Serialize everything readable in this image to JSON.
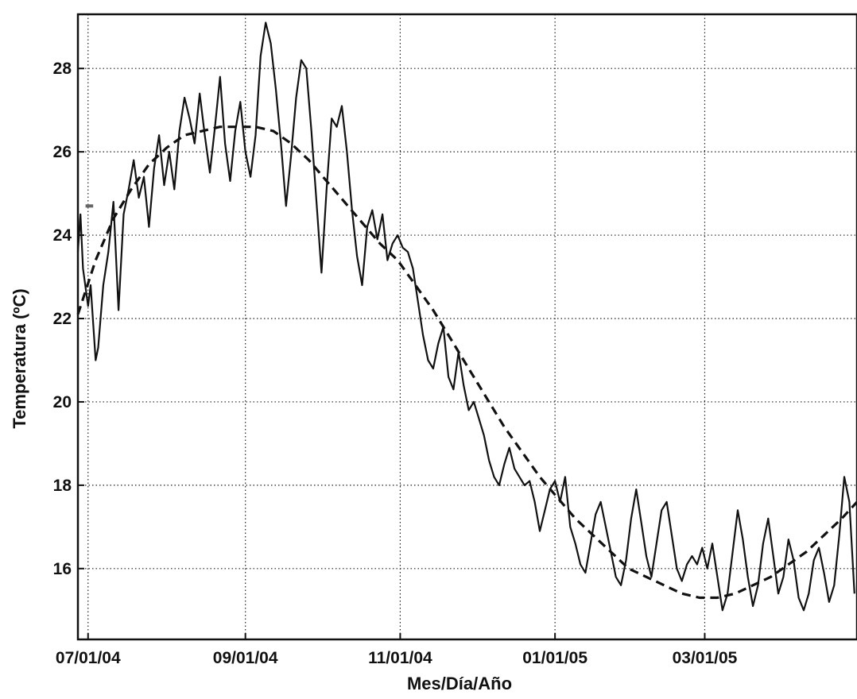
{
  "chart_data": {
    "type": "line",
    "title": "",
    "xlabel": "Mes/Día/Año",
    "ylabel": "Temperatura (ºC)",
    "x_ticks": [
      {
        "date": "2004-07-01",
        "label": "07/01/04"
      },
      {
        "date": "2004-09-01",
        "label": "09/01/04"
      },
      {
        "date": "2004-11-01",
        "label": "11/01/04"
      },
      {
        "date": "2005-01-01",
        "label": "01/01/05"
      },
      {
        "date": "2005-03-01",
        "label": "03/01/05"
      }
    ],
    "xlim": [
      "2004-06-27",
      "2005-04-30"
    ],
    "y_ticks": [
      16,
      18,
      20,
      22,
      24,
      26,
      28
    ],
    "ylim": [
      14.3,
      29.3
    ],
    "grid": true,
    "line_color": "#111111",
    "series": [
      {
        "style": "solid",
        "points": [
          [
            "2004-06-27",
            23.6
          ],
          [
            "2004-06-28",
            24.5
          ],
          [
            "2004-06-29",
            23.2
          ],
          [
            "2004-07-01",
            22.3
          ],
          [
            "2004-07-02",
            22.8
          ],
          [
            "2004-07-04",
            21.0
          ],
          [
            "2004-07-05",
            21.3
          ],
          [
            "2004-07-07",
            22.8
          ],
          [
            "2004-07-09",
            23.6
          ],
          [
            "2004-07-11",
            24.8
          ],
          [
            "2004-07-13",
            22.2
          ],
          [
            "2004-07-15",
            24.5
          ],
          [
            "2004-07-17",
            25.1
          ],
          [
            "2004-07-19",
            25.8
          ],
          [
            "2004-07-21",
            24.9
          ],
          [
            "2004-07-23",
            25.4
          ],
          [
            "2004-07-25",
            24.2
          ],
          [
            "2004-07-27",
            25.6
          ],
          [
            "2004-07-29",
            26.4
          ],
          [
            "2004-07-31",
            25.2
          ],
          [
            "2004-08-02",
            26.0
          ],
          [
            "2004-08-04",
            25.1
          ],
          [
            "2004-08-06",
            26.5
          ],
          [
            "2004-08-08",
            27.3
          ],
          [
            "2004-08-10",
            26.8
          ],
          [
            "2004-08-12",
            26.2
          ],
          [
            "2004-08-14",
            27.4
          ],
          [
            "2004-08-16",
            26.4
          ],
          [
            "2004-08-18",
            25.5
          ],
          [
            "2004-08-20",
            26.6
          ],
          [
            "2004-08-22",
            27.8
          ],
          [
            "2004-08-24",
            26.2
          ],
          [
            "2004-08-26",
            25.3
          ],
          [
            "2004-08-28",
            26.5
          ],
          [
            "2004-08-30",
            27.2
          ],
          [
            "2004-09-01",
            26.0
          ],
          [
            "2004-09-03",
            25.4
          ],
          [
            "2004-09-05",
            26.4
          ],
          [
            "2004-09-07",
            28.3
          ],
          [
            "2004-09-09",
            29.1
          ],
          [
            "2004-09-11",
            28.6
          ],
          [
            "2004-09-13",
            27.5
          ],
          [
            "2004-09-15",
            26.2
          ],
          [
            "2004-09-17",
            24.7
          ],
          [
            "2004-09-19",
            25.9
          ],
          [
            "2004-09-21",
            27.3
          ],
          [
            "2004-09-23",
            28.2
          ],
          [
            "2004-09-25",
            28.0
          ],
          [
            "2004-09-27",
            26.5
          ],
          [
            "2004-09-29",
            24.8
          ],
          [
            "2004-10-01",
            23.1
          ],
          [
            "2004-10-03",
            25.1
          ],
          [
            "2004-10-05",
            26.8
          ],
          [
            "2004-10-07",
            26.6
          ],
          [
            "2004-10-09",
            27.1
          ],
          [
            "2004-10-11",
            26.0
          ],
          [
            "2004-10-13",
            24.6
          ],
          [
            "2004-10-15",
            23.5
          ],
          [
            "2004-10-17",
            22.8
          ],
          [
            "2004-10-19",
            24.2
          ],
          [
            "2004-10-21",
            24.6
          ],
          [
            "2004-10-23",
            23.9
          ],
          [
            "2004-10-25",
            24.5
          ],
          [
            "2004-10-27",
            23.4
          ],
          [
            "2004-10-29",
            23.8
          ],
          [
            "2004-10-31",
            24.0
          ],
          [
            "2004-11-02",
            23.7
          ],
          [
            "2004-11-04",
            23.6
          ],
          [
            "2004-11-06",
            23.2
          ],
          [
            "2004-11-08",
            22.4
          ],
          [
            "2004-11-10",
            21.6
          ],
          [
            "2004-11-12",
            21.0
          ],
          [
            "2004-11-14",
            20.8
          ],
          [
            "2004-11-16",
            21.4
          ],
          [
            "2004-11-18",
            21.8
          ],
          [
            "2004-11-20",
            20.6
          ],
          [
            "2004-11-22",
            20.3
          ],
          [
            "2004-11-24",
            21.2
          ],
          [
            "2004-11-26",
            20.4
          ],
          [
            "2004-11-28",
            19.8
          ],
          [
            "2004-11-30",
            20.0
          ],
          [
            "2004-12-02",
            19.6
          ],
          [
            "2004-12-04",
            19.2
          ],
          [
            "2004-12-06",
            18.6
          ],
          [
            "2004-12-08",
            18.2
          ],
          [
            "2004-12-10",
            18.0
          ],
          [
            "2004-12-12",
            18.5
          ],
          [
            "2004-12-14",
            18.9
          ],
          [
            "2004-12-16",
            18.4
          ],
          [
            "2004-12-18",
            18.2
          ],
          [
            "2004-12-20",
            18.0
          ],
          [
            "2004-12-22",
            18.1
          ],
          [
            "2004-12-24",
            17.6
          ],
          [
            "2004-12-26",
            16.9
          ],
          [
            "2004-12-28",
            17.4
          ],
          [
            "2004-12-30",
            17.9
          ],
          [
            "2005-01-01",
            18.1
          ],
          [
            "2005-01-03",
            17.6
          ],
          [
            "2005-01-05",
            18.2
          ],
          [
            "2005-01-07",
            17.0
          ],
          [
            "2005-01-09",
            16.6
          ],
          [
            "2005-01-11",
            16.1
          ],
          [
            "2005-01-13",
            15.9
          ],
          [
            "2005-01-15",
            16.6
          ],
          [
            "2005-01-17",
            17.3
          ],
          [
            "2005-01-19",
            17.6
          ],
          [
            "2005-01-21",
            17.0
          ],
          [
            "2005-01-23",
            16.4
          ],
          [
            "2005-01-25",
            15.8
          ],
          [
            "2005-01-27",
            15.6
          ],
          [
            "2005-01-29",
            16.2
          ],
          [
            "2005-01-31",
            17.2
          ],
          [
            "2005-02-02",
            17.9
          ],
          [
            "2005-02-04",
            17.1
          ],
          [
            "2005-02-06",
            16.3
          ],
          [
            "2005-02-08",
            15.8
          ],
          [
            "2005-02-10",
            16.6
          ],
          [
            "2005-02-12",
            17.4
          ],
          [
            "2005-02-14",
            17.6
          ],
          [
            "2005-02-16",
            16.8
          ],
          [
            "2005-02-18",
            16.0
          ],
          [
            "2005-02-20",
            15.7
          ],
          [
            "2005-02-22",
            16.1
          ],
          [
            "2005-02-24",
            16.3
          ],
          [
            "2005-02-26",
            16.1
          ],
          [
            "2005-02-28",
            16.5
          ],
          [
            "2005-03-02",
            16.0
          ],
          [
            "2005-03-04",
            16.6
          ],
          [
            "2005-03-06",
            15.8
          ],
          [
            "2005-03-08",
            15.0
          ],
          [
            "2005-03-10",
            15.4
          ],
          [
            "2005-03-12",
            16.4
          ],
          [
            "2005-03-14",
            17.4
          ],
          [
            "2005-03-16",
            16.7
          ],
          [
            "2005-03-18",
            15.8
          ],
          [
            "2005-03-20",
            15.1
          ],
          [
            "2005-03-22",
            15.6
          ],
          [
            "2005-03-24",
            16.6
          ],
          [
            "2005-03-26",
            17.2
          ],
          [
            "2005-03-28",
            16.3
          ],
          [
            "2005-03-30",
            15.4
          ],
          [
            "2005-04-01",
            15.8
          ],
          [
            "2005-04-03",
            16.7
          ],
          [
            "2005-04-05",
            16.2
          ],
          [
            "2005-04-07",
            15.3
          ],
          [
            "2005-04-09",
            15.0
          ],
          [
            "2005-04-11",
            15.4
          ],
          [
            "2005-04-13",
            16.2
          ],
          [
            "2005-04-15",
            16.5
          ],
          [
            "2005-04-17",
            15.9
          ],
          [
            "2005-04-19",
            15.2
          ],
          [
            "2005-04-21",
            15.6
          ],
          [
            "2005-04-23",
            16.8
          ],
          [
            "2005-04-25",
            18.2
          ],
          [
            "2005-04-27",
            17.6
          ],
          [
            "2005-04-29",
            15.4
          ]
        ]
      },
      {
        "style": "dashed",
        "points": [
          [
            "2004-06-27",
            22.1
          ],
          [
            "2004-07-04",
            23.4
          ],
          [
            "2004-07-11",
            24.4
          ],
          [
            "2004-07-18",
            25.1
          ],
          [
            "2004-07-25",
            25.7
          ],
          [
            "2004-08-01",
            26.1
          ],
          [
            "2004-08-08",
            26.4
          ],
          [
            "2004-08-15",
            26.5
          ],
          [
            "2004-08-22",
            26.6
          ],
          [
            "2004-08-29",
            26.6
          ],
          [
            "2004-09-05",
            26.6
          ],
          [
            "2004-09-12",
            26.5
          ],
          [
            "2004-09-19",
            26.2
          ],
          [
            "2004-09-26",
            25.8
          ],
          [
            "2004-10-03",
            25.3
          ],
          [
            "2004-10-10",
            24.8
          ],
          [
            "2004-10-17",
            24.3
          ],
          [
            "2004-10-24",
            23.8
          ],
          [
            "2004-10-31",
            23.4
          ],
          [
            "2004-11-07",
            22.8
          ],
          [
            "2004-11-14",
            22.2
          ],
          [
            "2004-11-21",
            21.5
          ],
          [
            "2004-11-28",
            20.8
          ],
          [
            "2004-12-05",
            20.1
          ],
          [
            "2004-12-12",
            19.4
          ],
          [
            "2004-12-19",
            18.8
          ],
          [
            "2004-12-26",
            18.2
          ],
          [
            "2005-01-02",
            17.7
          ],
          [
            "2005-01-09",
            17.2
          ],
          [
            "2005-01-16",
            16.8
          ],
          [
            "2005-01-23",
            16.4
          ],
          [
            "2005-01-30",
            16.0
          ],
          [
            "2005-02-06",
            15.8
          ],
          [
            "2005-02-13",
            15.6
          ],
          [
            "2005-02-20",
            15.4
          ],
          [
            "2005-02-27",
            15.3
          ],
          [
            "2005-03-06",
            15.3
          ],
          [
            "2005-03-13",
            15.4
          ],
          [
            "2005-03-20",
            15.6
          ],
          [
            "2005-03-27",
            15.8
          ],
          [
            "2005-04-03",
            16.1
          ],
          [
            "2005-04-10",
            16.4
          ],
          [
            "2005-04-17",
            16.8
          ],
          [
            "2005-04-24",
            17.2
          ],
          [
            "2005-04-30",
            17.6
          ]
        ]
      },
      {
        "style": "segment",
        "color": "#666666",
        "points": [
          [
            "2004-06-30",
            24.7
          ],
          [
            "2004-07-03",
            24.7
          ]
        ]
      }
    ]
  }
}
